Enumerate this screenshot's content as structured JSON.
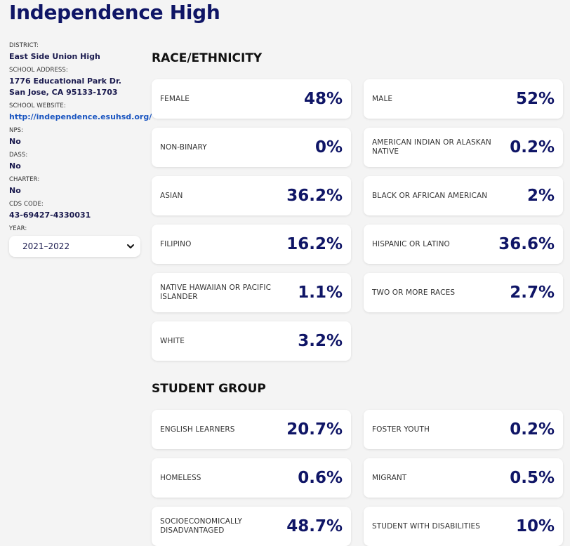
{
  "school": {
    "name": "Independence High"
  },
  "sidebar": {
    "district": {
      "label": "DISTRICT:",
      "value": "East Side Union High"
    },
    "address": {
      "label": "SCHOOL ADDRESS:",
      "line1": "1776 Educational Park Dr.",
      "line2": "San Jose, CA 95133-1703"
    },
    "website": {
      "label": "SCHOOL WEBSITE:",
      "value": "http://independence.esuhsd.org/"
    },
    "nps": {
      "label": "NPS:",
      "value": "No"
    },
    "dass": {
      "label": "DASS:",
      "value": "No"
    },
    "charter": {
      "label": "CHARTER:",
      "value": "No"
    },
    "cds": {
      "label": "CDS CODE:",
      "value": "43-69427-4330031"
    },
    "year": {
      "label": "YEAR:",
      "selected": "2021–2022"
    }
  },
  "race": {
    "title": "RACE/ETHNICITY",
    "items": [
      {
        "label": "FEMALE",
        "value": "48%"
      },
      {
        "label": "MALE",
        "value": "52%"
      },
      {
        "label": "NON-BINARY",
        "value": "0%"
      },
      {
        "label": "AMERICAN INDIAN OR ALASKAN NATIVE",
        "value": "0.2%"
      },
      {
        "label": "ASIAN",
        "value": "36.2%"
      },
      {
        "label": "BLACK OR AFRICAN AMERICAN",
        "value": "2%"
      },
      {
        "label": "FILIPINO",
        "value": "16.2%"
      },
      {
        "label": "HISPANIC OR LATINO",
        "value": "36.6%"
      },
      {
        "label": "NATIVE HAWAIIAN OR PACIFIC ISLANDER",
        "value": "1.1%"
      },
      {
        "label": "TWO OR MORE RACES",
        "value": "2.7%"
      },
      {
        "label": "WHITE",
        "value": "3.2%"
      }
    ]
  },
  "student_group": {
    "title": "STUDENT GROUP",
    "items": [
      {
        "label": "ENGLISH LEARNERS",
        "value": "20.7%"
      },
      {
        "label": "FOSTER YOUTH",
        "value": "0.2%"
      },
      {
        "label": "HOMELESS",
        "value": "0.6%"
      },
      {
        "label": "MIGRANT",
        "value": "0.5%"
      },
      {
        "label": "SOCIOECONOMICALLY DISADVANTAGED",
        "value": "48.7%"
      },
      {
        "label": "STUDENT WITH DISABILITIES",
        "value": "10%"
      }
    ]
  }
}
